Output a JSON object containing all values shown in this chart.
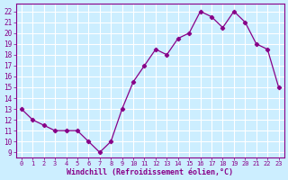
{
  "x": [
    0,
    1,
    2,
    3,
    4,
    5,
    6,
    7,
    8,
    9,
    10,
    11,
    12,
    13,
    14,
    15,
    16,
    17,
    18,
    19,
    20,
    21,
    22,
    23
  ],
  "y": [
    13,
    12,
    11.5,
    11,
    11,
    11,
    10,
    9,
    10,
    13,
    15.5,
    17,
    18.5,
    18,
    19.5,
    20,
    22,
    21.5,
    20.5,
    22,
    21,
    19,
    18.5,
    15
  ],
  "line_color": "#880088",
  "marker": "D",
  "marker_size": 2.2,
  "bg_color": "#cceeff",
  "grid_color": "#ffffff",
  "xlabel": "Windchill (Refroidissement éolien,°C)",
  "xlabel_fontsize": 6.0,
  "xlabel_color": "#880088",
  "tick_color": "#880088",
  "ytick_labels": [
    "9",
    "10",
    "11",
    "12",
    "13",
    "14",
    "15",
    "16",
    "17",
    "18",
    "19",
    "20",
    "21",
    "22"
  ],
  "ytick_vals": [
    9,
    10,
    11,
    12,
    13,
    14,
    15,
    16,
    17,
    18,
    19,
    20,
    21,
    22
  ],
  "xtick_vals": [
    0,
    1,
    2,
    3,
    4,
    5,
    6,
    7,
    8,
    9,
    10,
    11,
    12,
    13,
    14,
    15,
    16,
    17,
    18,
    19,
    20,
    21,
    22,
    23
  ],
  "xtick_labels": [
    "0",
    "1",
    "2",
    "3",
    "4",
    "5",
    "6",
    "7",
    "8",
    "9",
    "10",
    "11",
    "12",
    "13",
    "14",
    "15",
    "16",
    "17",
    "18",
    "19",
    "20",
    "21",
    "22",
    "23"
  ],
  "ylim": [
    8.5,
    22.7
  ],
  "xlim": [
    -0.5,
    23.5
  ],
  "spine_color": "#880088",
  "linewidth": 0.9
}
